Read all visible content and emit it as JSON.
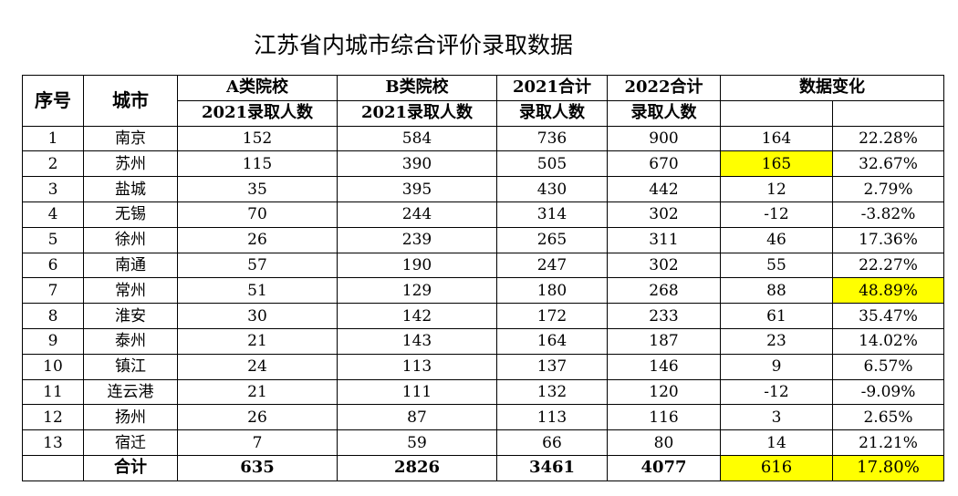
{
  "title": "江苏省内城市综合评价录取数据",
  "header": {
    "seq": "序号",
    "city": "城市",
    "a_top": "A类院校",
    "a_bottom": "2021录取人数",
    "b_top": "B类院校",
    "b_bottom": "2021录取人数",
    "t2021_top": "2021合计",
    "t2021_bottom": "录取人数",
    "t2022_top": "2022合计",
    "t2022_bottom": "录取人数",
    "change": "数据变化"
  },
  "rows": [
    {
      "seq": "1",
      "city": "南京",
      "a": "152",
      "b": "584",
      "t2021": "736",
      "t2022": "900",
      "diff": "164",
      "pct": "22.28%"
    },
    {
      "seq": "2",
      "city": "苏州",
      "a": "115",
      "b": "390",
      "t2021": "505",
      "t2022": "670",
      "diff": "165",
      "pct": "32.67%"
    },
    {
      "seq": "3",
      "city": "盐城",
      "a": "35",
      "b": "395",
      "t2021": "430",
      "t2022": "442",
      "diff": "12",
      "pct": "2.79%"
    },
    {
      "seq": "4",
      "city": "无锡",
      "a": "70",
      "b": "244",
      "t2021": "314",
      "t2022": "302",
      "diff": "-12",
      "pct": "-3.82%"
    },
    {
      "seq": "5",
      "city": "徐州",
      "a": "26",
      "b": "239",
      "t2021": "265",
      "t2022": "311",
      "diff": "46",
      "pct": "17.36%"
    },
    {
      "seq": "6",
      "city": "南通",
      "a": "57",
      "b": "190",
      "t2021": "247",
      "t2022": "302",
      "diff": "55",
      "pct": "22.27%"
    },
    {
      "seq": "7",
      "city": "常州",
      "a": "51",
      "b": "129",
      "t2021": "180",
      "t2022": "268",
      "diff": "88",
      "pct": "48.89%"
    },
    {
      "seq": "8",
      "city": "淮安",
      "a": "30",
      "b": "142",
      "t2021": "172",
      "t2022": "233",
      "diff": "61",
      "pct": "35.47%"
    },
    {
      "seq": "9",
      "city": "泰州",
      "a": "21",
      "b": "143",
      "t2021": "164",
      "t2022": "187",
      "diff": "23",
      "pct": "14.02%"
    },
    {
      "seq": "10",
      "city": "镇江",
      "a": "24",
      "b": "113",
      "t2021": "137",
      "t2022": "146",
      "diff": "9",
      "pct": "6.57%"
    },
    {
      "seq": "11",
      "city": "连云港",
      "a": "21",
      "b": "111",
      "t2021": "132",
      "t2022": "120",
      "diff": "-12",
      "pct": "-9.09%"
    },
    {
      "seq": "12",
      "city": "扬州",
      "a": "26",
      "b": "87",
      "t2021": "113",
      "t2022": "116",
      "diff": "3",
      "pct": "2.65%"
    },
    {
      "seq": "13",
      "city": "宿迁",
      "a": "7",
      "b": "59",
      "t2021": "66",
      "t2022": "80",
      "diff": "14",
      "pct": "21.21%"
    }
  ],
  "total": {
    "label": "合计",
    "a": "635",
    "b": "2826",
    "t2021": "3461",
    "t2022": "4077",
    "diff": "616",
    "pct": "17.80%"
  },
  "highlight_color": "#ffff00"
}
